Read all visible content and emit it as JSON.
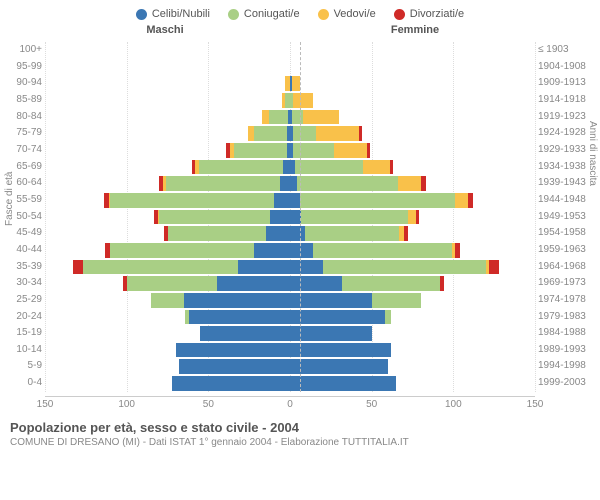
{
  "legend": [
    {
      "label": "Celibi/Nubili",
      "color": "#3b77b3"
    },
    {
      "label": "Coniugati/e",
      "color": "#a9cf85"
    },
    {
      "label": "Vedovi/e",
      "color": "#f9c14a"
    },
    {
      "label": "Divorziati/e",
      "color": "#cf2a27"
    }
  ],
  "col_headers": {
    "left": "Maschi",
    "right": "Femmine"
  },
  "y_title_left": "Fasce di età",
  "y_title_right": "Anni di nascita",
  "footer_title": "Popolazione per età, sesso e stato civile - 2004",
  "footer_sub": "COMUNE DI DRESANO (MI) - Dati ISTAT 1° gennaio 2004 - Elaborazione TUTTITALIA.IT",
  "xmax": 150,
  "xticks": [
    150,
    100,
    50,
    0,
    50,
    100,
    150
  ],
  "series_colors": [
    "#3b77b3",
    "#a9cf85",
    "#f9c14a",
    "#cf2a27"
  ],
  "rows": [
    {
      "age": "100+",
      "birth": "≤ 1903",
      "m": [
        0,
        0,
        0,
        0
      ],
      "f": [
        0,
        0,
        0,
        0
      ]
    },
    {
      "age": "95-99",
      "birth": "1904-1908",
      "m": [
        0,
        0,
        0,
        0
      ],
      "f": [
        0,
        0,
        0,
        0
      ]
    },
    {
      "age": "90-94",
      "birth": "1909-1913",
      "m": [
        0,
        0,
        3,
        0
      ],
      "f": [
        1,
        0,
        5,
        0
      ]
    },
    {
      "age": "85-89",
      "birth": "1914-1918",
      "m": [
        0,
        3,
        2,
        0
      ],
      "f": [
        0,
        2,
        12,
        0
      ]
    },
    {
      "age": "80-84",
      "birth": "1919-1923",
      "m": [
        1,
        12,
        4,
        0
      ],
      "f": [
        1,
        7,
        22,
        0
      ]
    },
    {
      "age": "75-79",
      "birth": "1924-1928",
      "m": [
        2,
        20,
        4,
        0
      ],
      "f": [
        2,
        14,
        26,
        2
      ]
    },
    {
      "age": "70-74",
      "birth": "1929-1933",
      "m": [
        2,
        32,
        3,
        2
      ],
      "f": [
        2,
        25,
        20,
        2
      ]
    },
    {
      "age": "65-69",
      "birth": "1934-1938",
      "m": [
        4,
        52,
        2,
        2
      ],
      "f": [
        3,
        42,
        16,
        2
      ]
    },
    {
      "age": "60-64",
      "birth": "1939-1943",
      "m": [
        6,
        70,
        2,
        2
      ],
      "f": [
        4,
        62,
        14,
        3
      ]
    },
    {
      "age": "55-59",
      "birth": "1944-1948",
      "m": [
        10,
        100,
        1,
        3
      ],
      "f": [
        6,
        95,
        8,
        3
      ]
    },
    {
      "age": "50-54",
      "birth": "1949-1953",
      "m": [
        12,
        68,
        1,
        2
      ],
      "f": [
        7,
        65,
        5,
        2
      ]
    },
    {
      "age": "45-49",
      "birth": "1954-1958",
      "m": [
        15,
        60,
        0,
        2
      ],
      "f": [
        9,
        58,
        3,
        2
      ]
    },
    {
      "age": "40-44",
      "birth": "1959-1963",
      "m": [
        22,
        88,
        0,
        3
      ],
      "f": [
        14,
        85,
        2,
        3
      ]
    },
    {
      "age": "35-39",
      "birth": "1964-1968",
      "m": [
        32,
        95,
        0,
        6
      ],
      "f": [
        20,
        100,
        2,
        6
      ]
    },
    {
      "age": "30-34",
      "birth": "1969-1973",
      "m": [
        45,
        55,
        0,
        2
      ],
      "f": [
        32,
        60,
        0,
        2
      ]
    },
    {
      "age": "25-29",
      "birth": "1974-1978",
      "m": [
        65,
        20,
        0,
        0
      ],
      "f": [
        50,
        30,
        0,
        0
      ]
    },
    {
      "age": "20-24",
      "birth": "1979-1983",
      "m": [
        62,
        2,
        0,
        0
      ],
      "f": [
        58,
        4,
        0,
        0
      ]
    },
    {
      "age": "15-19",
      "birth": "1984-1988",
      "m": [
        55,
        0,
        0,
        0
      ],
      "f": [
        50,
        0,
        0,
        0
      ]
    },
    {
      "age": "10-14",
      "birth": "1989-1993",
      "m": [
        70,
        0,
        0,
        0
      ],
      "f": [
        62,
        0,
        0,
        0
      ]
    },
    {
      "age": "5-9",
      "birth": "1994-1998",
      "m": [
        68,
        0,
        0,
        0
      ],
      "f": [
        60,
        0,
        0,
        0
      ]
    },
    {
      "age": "0-4",
      "birth": "1999-2003",
      "m": [
        72,
        0,
        0,
        0
      ],
      "f": [
        65,
        0,
        0,
        0
      ]
    }
  ]
}
